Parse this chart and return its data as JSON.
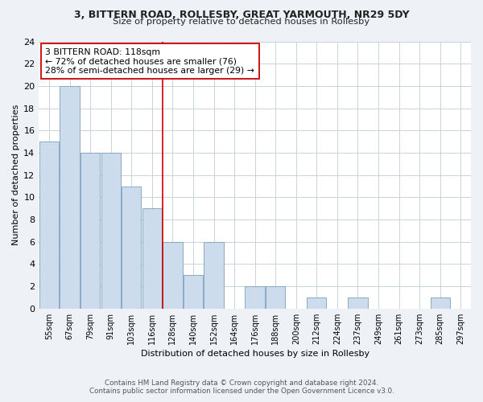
{
  "title1": "3, BITTERN ROAD, ROLLESBY, GREAT YARMOUTH, NR29 5DY",
  "title2": "Size of property relative to detached houses in Rollesby",
  "xlabel": "Distribution of detached houses by size in Rollesby",
  "ylabel": "Number of detached properties",
  "bin_labels": [
    "55sqm",
    "67sqm",
    "79sqm",
    "91sqm",
    "103sqm",
    "116sqm",
    "128sqm",
    "140sqm",
    "152sqm",
    "164sqm",
    "176sqm",
    "188sqm",
    "200sqm",
    "212sqm",
    "224sqm",
    "237sqm",
    "249sqm",
    "261sqm",
    "273sqm",
    "285sqm",
    "297sqm"
  ],
  "counts": [
    15,
    20,
    14,
    14,
    11,
    9,
    6,
    3,
    6,
    0,
    2,
    2,
    0,
    1,
    0,
    1,
    0,
    0,
    0,
    1,
    0
  ],
  "bar_color": "#ccdcec",
  "bar_edge_color": "#7aa0bc",
  "vline_index": 5,
  "vline_color": "#cc0000",
  "annotation_box_color": "#ffffff",
  "annotation_box_edge": "#cc0000",
  "annotation_line1": "3 BITTERN ROAD: 118sqm",
  "annotation_line2": "← 72% of detached houses are smaller (76)",
  "annotation_line3": "28% of semi-detached houses are larger (29) →",
  "ylim": [
    0,
    24
  ],
  "yticks": [
    0,
    2,
    4,
    6,
    8,
    10,
    12,
    14,
    16,
    18,
    20,
    22,
    24
  ],
  "footer1": "Contains HM Land Registry data © Crown copyright and database right 2024.",
  "footer2": "Contains public sector information licensed under the Open Government Licence v3.0.",
  "bg_color": "#eef2f7",
  "plot_bg_color": "#ffffff",
  "grid_color": "#c8d4e0"
}
